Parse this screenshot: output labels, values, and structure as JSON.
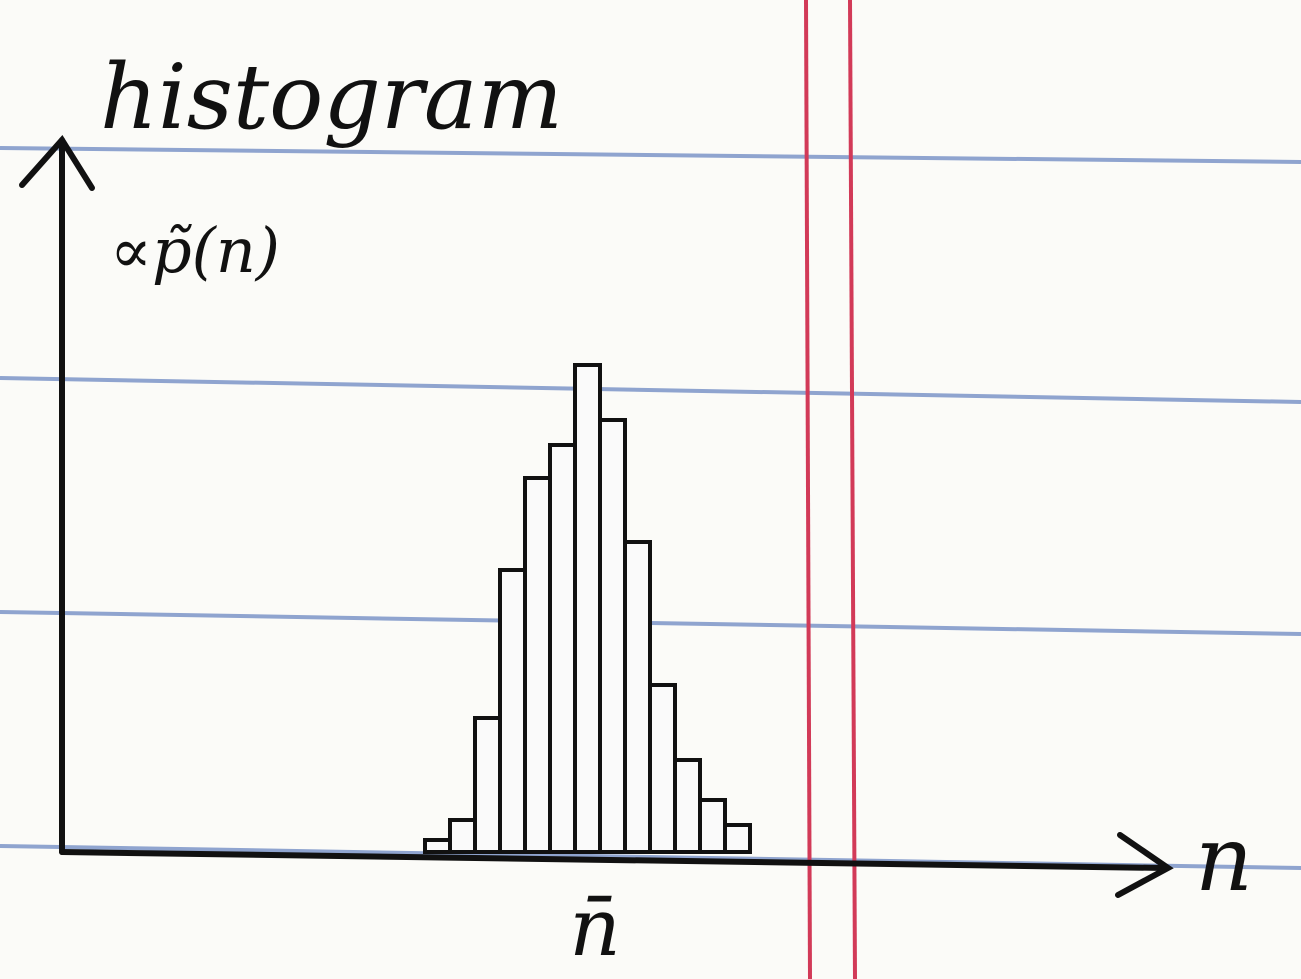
{
  "chart_data": {
    "type": "bar",
    "title": "histogram",
    "y_label": "∝p̃(n)",
    "x_label": "n",
    "annotations": [
      "n̄"
    ],
    "values": [
      12,
      32,
      134,
      282,
      374,
      407,
      487,
      432,
      310,
      167,
      92,
      52,
      27
    ]
  }
}
